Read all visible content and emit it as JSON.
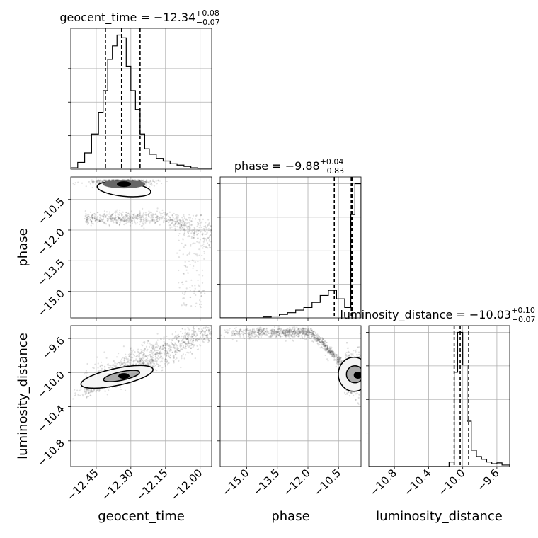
{
  "chart_data": {
    "type": "corner",
    "parameters": [
      {
        "key": "geocent_time",
        "xlabel": "geocent_time",
        "title": {
          "prefix": "geocent_time = ",
          "median": "−12.34",
          "plus": "+0.08",
          "minus": "−0.07"
        },
        "range": [
          -12.56,
          -11.95
        ],
        "ticks": [
          -12.45,
          -12.3,
          -12.15,
          -12.0
        ],
        "tick_labels": [
          "−12.45",
          "−12.30",
          "−12.15",
          "−12.00"
        ],
        "quantiles": [
          -12.41,
          -12.34,
          -12.26
        ],
        "hist": {
          "edges": [
            -12.56,
            -12.53,
            -12.5,
            -12.47,
            -12.44,
            -12.42,
            -12.4,
            -12.38,
            -12.36,
            -12.34,
            -12.32,
            -12.3,
            -12.28,
            -12.26,
            -12.24,
            -12.22,
            -12.19,
            -12.16,
            -12.13,
            -12.1,
            -12.07,
            -12.04,
            -12.01,
            -11.98,
            -11.95
          ],
          "counts": [
            0.01,
            0.05,
            0.12,
            0.26,
            0.42,
            0.58,
            0.81,
            0.91,
            0.99,
            0.97,
            0.76,
            0.58,
            0.44,
            0.26,
            0.15,
            0.11,
            0.08,
            0.06,
            0.04,
            0.03,
            0.02,
            0.01,
            0.0,
            0.0
          ]
        }
      },
      {
        "key": "phase",
        "xlabel": "phase",
        "ylabel": "phase",
        "title": {
          "prefix": "phase = ",
          "median": "−9.88",
          "plus": "+0.04",
          "minus": "−0.83"
        },
        "range": [
          -16.3,
          -9.4
        ],
        "ticks": [
          -15.0,
          -13.5,
          -12.0,
          -10.5
        ],
        "tick_labels": [
          "−15.0",
          "−13.5",
          "−12.0",
          "−10.5"
        ],
        "quantiles": [
          -10.71,
          -9.88,
          -9.84
        ],
        "hist": {
          "edges": [
            -16.3,
            -14.2,
            -13.8,
            -13.4,
            -13.0,
            -12.6,
            -12.2,
            -11.8,
            -11.4,
            -11.0,
            -10.6,
            -10.2,
            -9.9,
            -9.7,
            -9.4
          ],
          "counts": [
            0.0,
            0.005,
            0.01,
            0.02,
            0.03,
            0.045,
            0.06,
            0.09,
            0.13,
            0.16,
            0.11,
            0.06,
            0.6,
            0.78
          ]
        }
      },
      {
        "key": "luminosity_distance",
        "xlabel": "luminosity_distance",
        "ylabel": "luminosity_distance",
        "title": {
          "prefix": "luminosity_distance = ",
          "median": "−10.03",
          "plus": "+0.10",
          "minus": "−0.07"
        },
        "range": [
          -11.1,
          -9.45
        ],
        "ticks": [
          -10.8,
          -10.4,
          -10.0,
          -9.6
        ],
        "tick_labels": [
          "−10.8",
          "−10.4",
          "−10.0",
          "−9.6"
        ],
        "quantiles": [
          -10.1,
          -10.03,
          -9.93
        ],
        "hist": {
          "edges": [
            -11.1,
            -10.16,
            -10.1,
            -10.06,
            -10.0,
            -9.95,
            -9.9,
            -9.84,
            -9.78,
            -9.72,
            -9.66,
            -9.6,
            -9.54,
            -9.45
          ],
          "counts": [
            0.0,
            0.025,
            0.52,
            0.74,
            0.56,
            0.25,
            0.09,
            0.055,
            0.04,
            0.025,
            0.015,
            0.02,
            0.008
          ]
        }
      }
    ],
    "grid": true,
    "scatter_color": "#000000",
    "contour_color": "#000000"
  }
}
